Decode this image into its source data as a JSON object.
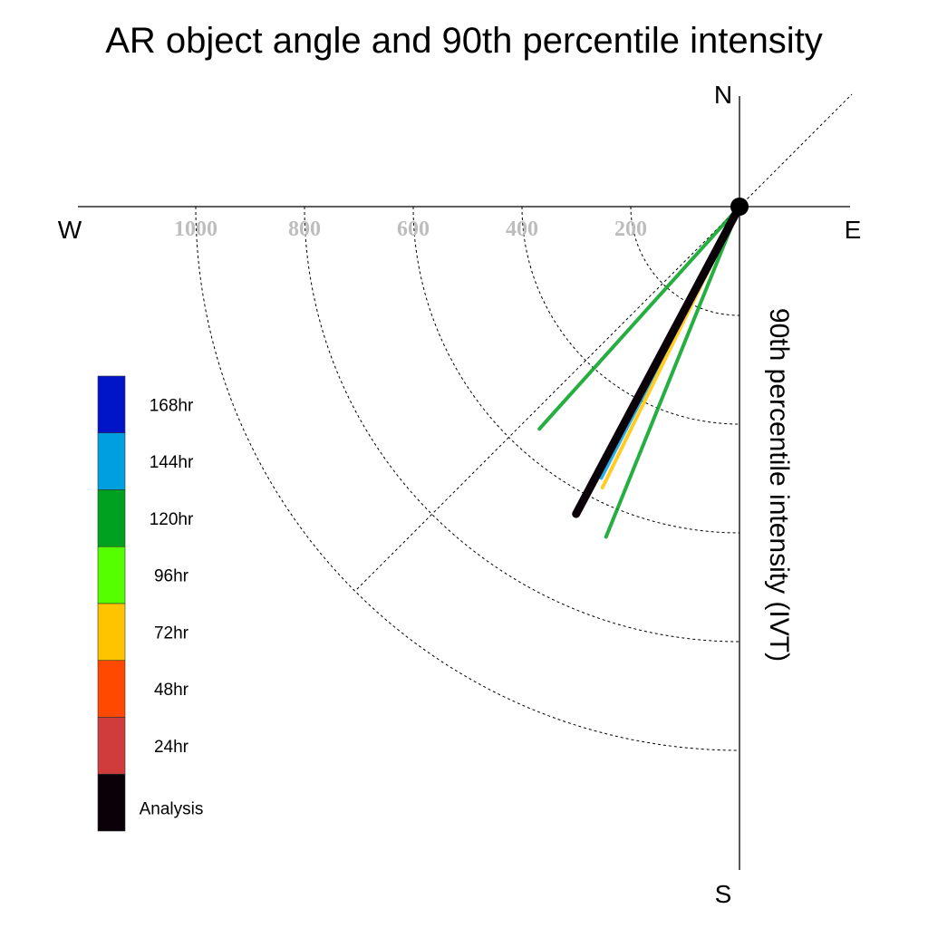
{
  "chart_data": {
    "type": "polar-vector",
    "title": "AR object angle and 90th percentile intensity",
    "radial_label": "90th percentile intensity (IVT)",
    "directions": {
      "north": "N",
      "south": "S",
      "east": "E",
      "west": "W"
    },
    "radial_ticks": [
      200,
      400,
      600,
      800,
      1000
    ],
    "radial_tick_labels": [
      "200",
      "400",
      "600",
      "800",
      "1000"
    ],
    "rmax": 1200,
    "series": [
      {
        "name": "168hr",
        "color": "#0014c8",
        "angle_deg": 208,
        "intensity": 640
      },
      {
        "name": "144hr",
        "color": "#00a0e0",
        "angle_deg": 207,
        "intensity": 560
      },
      {
        "name": "120hr",
        "color": "#00a020",
        "angle_deg": 202,
        "intensity": 655
      },
      {
        "name": "120hr",
        "color": "#00a020",
        "angle_deg": 222,
        "intensity": 550
      },
      {
        "name": "96hr",
        "color": "#55ff00",
        "angle_deg": 208,
        "intensity": 560
      },
      {
        "name": "72hr",
        "color": "#ffc400",
        "angle_deg": 206,
        "intensity": 575
      },
      {
        "name": "48hr",
        "color": "#ff4800",
        "angle_deg": 208,
        "intensity": 580
      },
      {
        "name": "24hr",
        "color": "#d03c3c",
        "angle_deg": 208,
        "intensity": 590
      },
      {
        "name": "Analysis",
        "color": "#0a0008",
        "angle_deg": 208,
        "intensity": 640
      }
    ],
    "legend": [
      {
        "label": "168hr",
        "color": "#0014c8"
      },
      {
        "label": "144hr",
        "color": "#00a0e0"
      },
      {
        "label": "120hr",
        "color": "#00a020"
      },
      {
        "label": "96hr",
        "color": "#55ff00"
      },
      {
        "label": "72hr",
        "color": "#ffc400"
      },
      {
        "label": "48hr",
        "color": "#ff4800"
      },
      {
        "label": "24hr",
        "color": "#d03c3c"
      },
      {
        "label": "Analysis",
        "color": "#0a0008"
      }
    ],
    "legend_position": "left"
  }
}
